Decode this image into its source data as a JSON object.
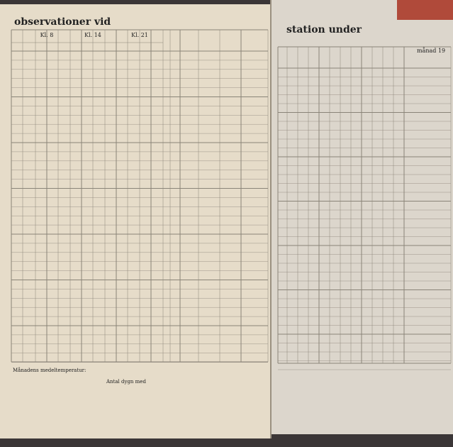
{
  "left_page": {
    "title": "observationer vid",
    "column_groups": [
      "Kl. 8",
      "Kl. 14",
      "Kl. 21"
    ],
    "summary_label": "Månadens medeltemperatur:",
    "days_count_label": "Antal dygn med"
  },
  "right_page": {
    "title": "station under",
    "month_label": "månad 19"
  }
}
